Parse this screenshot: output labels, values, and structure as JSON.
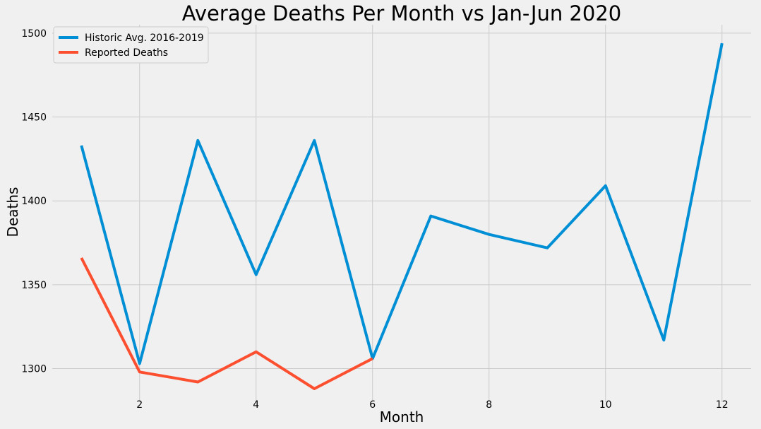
{
  "chart_data": {
    "type": "line",
    "title": "Average Deaths Per Month vs Jan-Jun 2020",
    "xlabel": "Month",
    "ylabel": "Deaths",
    "xlim": [
      0.5,
      12.5
    ],
    "ylim": [
      1280,
      1505
    ],
    "x_ticks": [
      2,
      4,
      6,
      8,
      10,
      12
    ],
    "y_ticks": [
      1300,
      1350,
      1400,
      1450,
      1500
    ],
    "grid": true,
    "legend_position": "top-left",
    "series": [
      {
        "name": "Historic Avg. 2016-2019",
        "color": "#008fd5",
        "x": [
          1,
          2,
          3,
          4,
          5,
          6,
          7,
          8,
          9,
          10,
          11,
          12
        ],
        "values": [
          1433,
          1303,
          1436,
          1356,
          1436,
          1306,
          1391,
          1380,
          1372,
          1409,
          1317,
          1494
        ]
      },
      {
        "name": "Reported Deaths",
        "color": "#fc4f30",
        "x": [
          1,
          2,
          3,
          4,
          5,
          6
        ],
        "values": [
          1366,
          1298,
          1292,
          1310,
          1288,
          1306
        ]
      }
    ]
  }
}
